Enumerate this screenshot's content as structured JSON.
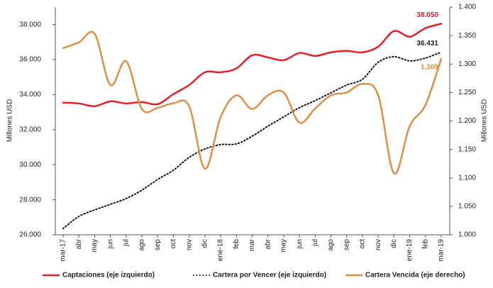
{
  "chart_data": {
    "type": "line",
    "y_label": "Millones USD",
    "y2_label": "Millones USD",
    "categories": [
      "mar-17",
      "abr",
      "may",
      "jun",
      "jul",
      "ago",
      "sep",
      "oct",
      "nov",
      "dic",
      "ene-18",
      "feb",
      "mar",
      "abr",
      "may",
      "jun",
      "jul",
      "ago",
      "sep",
      "oct",
      "nov",
      "dic",
      "ene-19",
      "feb",
      "mar-19"
    ],
    "ylim": [
      26000,
      39000
    ],
    "yticks": [
      {
        "value": 26000,
        "label": "26.000"
      },
      {
        "value": 28000,
        "label": "28.000"
      },
      {
        "value": 30000,
        "label": "30.000"
      },
      {
        "value": 32000,
        "label": "32.000"
      },
      {
        "value": 34000,
        "label": "34.000"
      },
      {
        "value": 36000,
        "label": "36.000"
      },
      {
        "value": 38000,
        "label": "38.000"
      }
    ],
    "y2lim": [
      1000,
      1400
    ],
    "y2ticks": [
      {
        "value": 1000,
        "label": "1.000"
      },
      {
        "value": 1050,
        "label": "1.050"
      },
      {
        "value": 1100,
        "label": "1.100"
      },
      {
        "value": 1150,
        "label": "1.150"
      },
      {
        "value": 1200,
        "label": "1.200"
      },
      {
        "value": 1250,
        "label": "1.250"
      },
      {
        "value": 1300,
        "label": "1.300"
      },
      {
        "value": 1350,
        "label": "1.350"
      },
      {
        "value": 1400,
        "label": "1.400"
      }
    ],
    "series": [
      {
        "name": "Captaciones (eje izquierdo)",
        "color": "#e0202a",
        "style": "solid",
        "values": [
          33540,
          33500,
          33340,
          33620,
          33500,
          33580,
          33460,
          34030,
          34550,
          35280,
          35280,
          35500,
          36250,
          36130,
          35970,
          36380,
          36210,
          36420,
          36500,
          36420,
          36740,
          37630,
          37310,
          37800,
          38050
        ],
        "value_labels": [
          null,
          null,
          null,
          null,
          null,
          null,
          null,
          null,
          null,
          null,
          null,
          null,
          null,
          null,
          null,
          null,
          null,
          null,
          null,
          null,
          null,
          null,
          null,
          null,
          "38.050"
        ]
      },
      {
        "name": "Cartera por Vencer (eje izquierdo)",
        "color": "#111111",
        "style": "dotted",
        "values": [
          26360,
          27050,
          27420,
          27740,
          28070,
          28550,
          29160,
          29690,
          30420,
          30900,
          31150,
          31190,
          31630,
          32200,
          32730,
          33260,
          33660,
          34110,
          34550,
          34880,
          35850,
          36170,
          35930,
          36090,
          36431
        ],
        "value_labels": [
          null,
          null,
          null,
          null,
          null,
          null,
          null,
          null,
          null,
          null,
          null,
          null,
          null,
          null,
          null,
          null,
          null,
          null,
          null,
          null,
          null,
          null,
          null,
          null,
          "36.431"
        ]
      },
      {
        "name": "Cartera Vencida (eje derecho)",
        "color": "#d9914a",
        "style": "solid",
        "axis": "y2",
        "values": [
          1328,
          1338,
          1353,
          1263,
          1305,
          1221,
          1223,
          1231,
          1226,
          1116,
          1207,
          1245,
          1221,
          1245,
          1250,
          1197,
          1222,
          1245,
          1250,
          1265,
          1245,
          1108,
          1191,
          1228,
          1309
        ],
        "value_labels": [
          null,
          null,
          null,
          null,
          null,
          null,
          null,
          null,
          null,
          null,
          null,
          null,
          null,
          null,
          null,
          null,
          null,
          null,
          null,
          null,
          null,
          null,
          null,
          null,
          "1.309"
        ]
      }
    ]
  }
}
